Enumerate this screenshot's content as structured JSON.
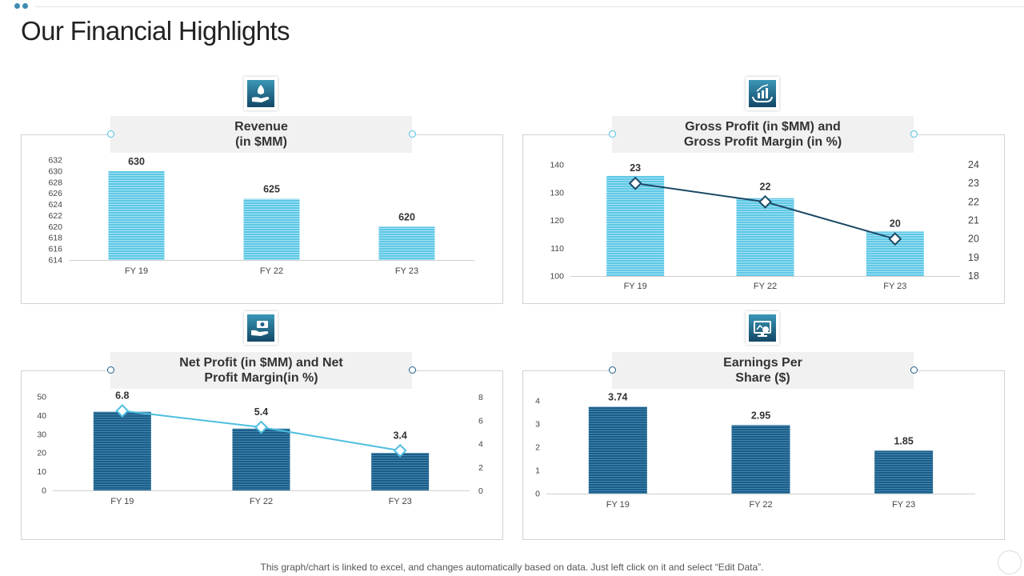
{
  "page": {
    "title": "Our Financial Highlights",
    "footer": "This graph/chart is linked to excel,  and changes automatically based on data. Just left click on it and select “Edit Data”."
  },
  "colors": {
    "light_bar": "#5ec8e6",
    "dark_bar": "#1d5e88",
    "gp_line": "#1b4a66",
    "np_line": "#4dbfe0"
  },
  "icons": {
    "revenue": "money-hand-icon",
    "gross_profit": "growth-chart-hand-icon",
    "net_profit": "cash-hand-icon",
    "eps": "monitor-dollar-icon"
  },
  "chart_data": [
    {
      "type": "bar",
      "title": "Revenue\n(in $MM)",
      "title_lines": [
        "Revenue",
        "(in $MM)"
      ],
      "categories": [
        "FY 19",
        "FY 22",
        "FY 23"
      ],
      "values": [
        630,
        625,
        620
      ],
      "data_labels": [
        "630",
        "625",
        "620"
      ],
      "ylim": [
        614,
        632
      ],
      "yticks": [
        "614",
        "616",
        "618",
        "620",
        "622",
        "624",
        "626",
        "628",
        "630",
        "632"
      ],
      "grid": false
    },
    {
      "type": "bar",
      "title": "Gross Profit (in $MM) and\nGross Profit Margin (in %)",
      "title_lines": [
        "Gross Profit (in $MM) and",
        "Gross Profit Margin (in %)"
      ],
      "categories": [
        "FY 19",
        "FY 22",
        "FY 23"
      ],
      "series": [
        {
          "name": "Gross Profit (in $MM)",
          "type": "bar",
          "axis": "left",
          "values": [
            136,
            128,
            116
          ]
        },
        {
          "name": "Gross Profit Margin (in %)",
          "type": "line",
          "axis": "right",
          "values": [
            23,
            22,
            20
          ]
        }
      ],
      "data_labels": [
        "23",
        "22",
        "20"
      ],
      "ylim": [
        100,
        140
      ],
      "yticks": [
        "100",
        "110",
        "120",
        "130",
        "140"
      ],
      "y2lim": [
        18,
        24
      ],
      "y2ticks": [
        "18",
        "19",
        "20",
        "21",
        "22",
        "23",
        "24"
      ],
      "grid": false
    },
    {
      "type": "bar",
      "title": "Net Profit (in $MM) and Net\nProfit Margin(in %)",
      "title_lines": [
        "Net Profit (in $MM) and Net",
        "Profit Margin(in %)"
      ],
      "categories": [
        "FY 19",
        "FY 22",
        "FY 23"
      ],
      "series": [
        {
          "name": "Net Profit (in $MM)",
          "type": "bar",
          "axis": "left",
          "values": [
            42,
            33,
            20
          ]
        },
        {
          "name": "Net Profit Margin (in %)",
          "type": "line",
          "axis": "right",
          "values": [
            6.8,
            5.4,
            3.4
          ]
        }
      ],
      "data_labels": [
        "6.8",
        "5.4",
        "3.4"
      ],
      "ylim": [
        0,
        50
      ],
      "yticks": [
        "0",
        "10",
        "20",
        "30",
        "40",
        "50"
      ],
      "y2lim": [
        0,
        8
      ],
      "y2ticks": [
        "0",
        "2",
        "4",
        "6",
        "8"
      ],
      "grid": false
    },
    {
      "type": "bar",
      "title": "Earnings Per\nShare ($)",
      "title_lines": [
        "Earnings Per",
        "Share ($)"
      ],
      "categories": [
        "FY 19",
        "FY 22",
        "FY 23"
      ],
      "values": [
        3.74,
        2.95,
        1.85
      ],
      "data_labels": [
        "3.74",
        "2.95",
        "1.85"
      ],
      "ylim": [
        0,
        4
      ],
      "yticks": [
        "0",
        "1",
        "2",
        "3",
        "4"
      ],
      "grid": false
    }
  ]
}
